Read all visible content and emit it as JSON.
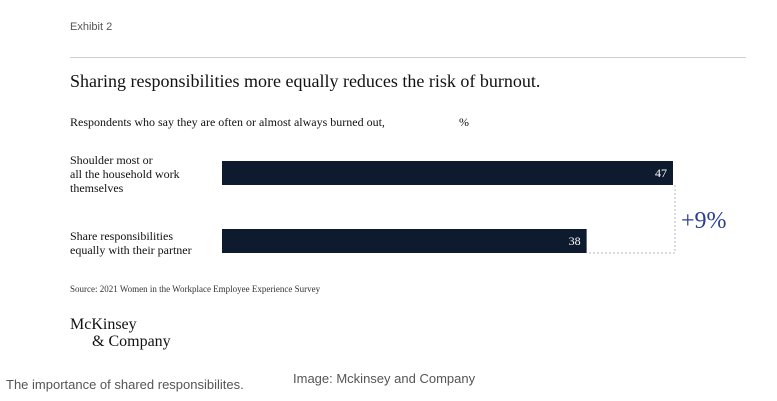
{
  "exhibit_label": "Exhibit 2",
  "chart_data": {
    "type": "bar",
    "orientation": "horizontal",
    "title": "Sharing responsibilities more equally reduces the risk of burnout.",
    "subtitle": "Respondents who say they are often or almost always burned out,",
    "unit": "%",
    "categories": [
      [
        "Shoulder most or",
        "all the household work",
        "themselves"
      ],
      [
        "Share responsibilities",
        "equally with their partner"
      ]
    ],
    "values": [
      47,
      38
    ],
    "xlim": [
      0,
      47
    ],
    "bar_color": "#0e1b2e",
    "annotation": {
      "text": "+9%",
      "color": "#2a3f8f"
    },
    "grid": false,
    "legend": "none"
  },
  "source": "Source: 2021 Women in the Workplace Employee Experience Survey",
  "logo": {
    "line1": "McKinsey",
    "line2": "& Company"
  },
  "caption": "The importance of shared responsibilites.",
  "credit": "Image: Mckinsey and Company"
}
